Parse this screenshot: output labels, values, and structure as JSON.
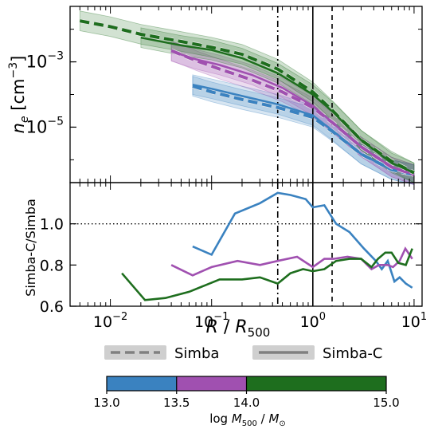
{
  "chart_data": [
    {
      "panel": "top",
      "type": "line",
      "ylabel_base": "n",
      "ylabel_sub": "e",
      "ylabel_unit_open": " [cm",
      "ylabel_unit_sup": "−3",
      "ylabel_unit_close": "]",
      "xscale": "log",
      "yscale": "log",
      "xlim": [
        0.004,
        12
      ],
      "ylim": [
        2e-07,
        0.05
      ],
      "y_ticks": [
        {
          "value": 0.001,
          "base": "10",
          "exp": "−3"
        },
        {
          "value": 1e-05,
          "base": "10",
          "exp": "−5"
        }
      ],
      "vlines": [
        {
          "x": 0.45,
          "style": "dashdot"
        },
        {
          "x": 1.0,
          "style": "solid"
        },
        {
          "x": 1.55,
          "style": "dashed"
        }
      ],
      "series": [
        {
          "mass_bin": [
            13.0,
            13.5
          ],
          "color": "#3a82c0",
          "variant": "Simba",
          "style": "dashed",
          "x": [
            0.065,
            0.1,
            0.2,
            0.45,
            1.0,
            1.6,
            3,
            6,
            10
          ],
          "y": [
            0.00018,
            0.00012,
            7e-05,
            4e-05,
            2e-05,
            7e-06,
            1.5e-06,
            5e-07,
            3.5e-07
          ],
          "band": [
            0.0016,
            0.002
          ]
        },
        {
          "mass_bin": [
            13.0,
            13.5
          ],
          "color": "#3a82c0",
          "variant": "Simba-C",
          "style": "solid",
          "x": [
            0.065,
            0.1,
            0.2,
            0.45,
            1.0,
            1.6,
            3,
            6,
            10
          ],
          "y": [
            0.0002,
            0.00015,
            9e-05,
            5e-05,
            2.3e-05,
            7.5e-06,
            1.5e-06,
            5e-07,
            3.5e-07
          ],
          "band": [
            0.0016,
            0.002
          ]
        },
        {
          "mass_bin": [
            13.5,
            14.0
          ],
          "color": "#a050b0",
          "variant": "Simba",
          "style": "dashed",
          "x": [
            0.04,
            0.07,
            0.12,
            0.25,
            0.5,
            1.0,
            1.6,
            3,
            6,
            10
          ],
          "y": [
            0.0022,
            0.0011,
            0.0006,
            0.00028,
            0.00012,
            4e-05,
            1.3e-05,
            2.5e-06,
            6e-07,
            3.5e-07
          ],
          "band": [
            0.0016,
            0.002
          ]
        },
        {
          "mass_bin": [
            13.5,
            14.0
          ],
          "color": "#a050b0",
          "variant": "Simba-C",
          "style": "solid",
          "x": [
            0.04,
            0.07,
            0.12,
            0.25,
            0.5,
            1.0,
            1.6,
            3,
            6,
            10
          ],
          "y": [
            0.0021,
            0.0012,
            0.0008,
            0.0004,
            0.00016,
            4.5e-05,
            1.3e-05,
            2.5e-06,
            6e-07,
            3.5e-07
          ],
          "band": [
            0.0016,
            0.002
          ]
        },
        {
          "mass_bin": [
            14.0,
            15.0
          ],
          "color": "#1e6e1e",
          "variant": "Simba",
          "style": "dashed",
          "x": [
            0.005,
            0.01,
            0.02,
            0.05,
            0.1,
            0.2,
            0.45,
            1.0,
            1.6,
            3,
            6,
            10
          ],
          "y": [
            0.018,
            0.012,
            0.007,
            0.0042,
            0.0028,
            0.0017,
            0.0006,
            0.00012,
            3e-05,
            4e-06,
            9e-07,
            4e-07
          ],
          "band": [
            0.0016,
            0.002
          ]
        },
        {
          "mass_bin": [
            14.0,
            15.0
          ],
          "color": "#1e6e1e",
          "variant": "Simba-C",
          "style": "solid",
          "x": [
            0.02,
            0.05,
            0.1,
            0.2,
            0.45,
            1.0,
            1.6,
            3,
            6,
            10
          ],
          "y": [
            0.0055,
            0.0032,
            0.0023,
            0.0013,
            0.00045,
            0.0001,
            2.8e-05,
            4e-06,
            8e-07,
            4e-07
          ],
          "band": [
            0.0016,
            0.002
          ]
        }
      ]
    },
    {
      "panel": "bottom",
      "type": "line",
      "ylabel": "Simba-C/Simba",
      "xlabel_base": "R",
      "xlabel_sep": " / ",
      "xlabel_sub": "500",
      "xscale": "log",
      "xlim": [
        0.004,
        12
      ],
      "ylim": [
        0.6,
        1.2
      ],
      "y_ticks": [
        {
          "value": 0.6,
          "label": "0.6"
        },
        {
          "value": 0.8,
          "label": "0.8"
        },
        {
          "value": 1.0,
          "label": "1.0"
        }
      ],
      "x_ticks": [
        {
          "value": 0.01,
          "base": "10",
          "exp": "−2"
        },
        {
          "value": 0.1,
          "base": "10",
          "exp": "−1"
        },
        {
          "value": 1,
          "base": "10",
          "exp": "0"
        },
        {
          "value": 10,
          "base": "10",
          "exp": "1"
        }
      ],
      "hline": {
        "y": 1.0,
        "style": "dotted"
      },
      "vlines": [
        {
          "x": 0.45,
          "style": "dashdot"
        },
        {
          "x": 1.0,
          "style": "solid"
        },
        {
          "x": 1.55,
          "style": "dashed"
        }
      ],
      "series": [
        {
          "mass_bin": [
            13.0,
            13.5
          ],
          "color": "#3a82c0",
          "x": [
            0.065,
            0.1,
            0.17,
            0.3,
            0.45,
            0.6,
            0.85,
            1.0,
            1.3,
            1.7,
            2.3,
            3.2,
            4.2,
            4.8,
            5.5,
            6.4,
            7.2,
            8.3,
            9.6
          ],
          "y": [
            0.89,
            0.85,
            1.05,
            1.1,
            1.15,
            1.14,
            1.12,
            1.08,
            1.09,
            1.0,
            0.96,
            0.88,
            0.82,
            0.78,
            0.82,
            0.72,
            0.74,
            0.71,
            0.69
          ]
        },
        {
          "mass_bin": [
            13.5,
            14.0
          ],
          "color": "#a050b0",
          "x": [
            0.04,
            0.065,
            0.1,
            0.18,
            0.3,
            0.45,
            0.7,
            1.0,
            1.3,
            1.6,
            2.2,
            3.0,
            3.8,
            4.5,
            5.5,
            6.2,
            7.2,
            8.2,
            9.6
          ],
          "y": [
            0.8,
            0.75,
            0.79,
            0.82,
            0.8,
            0.82,
            0.84,
            0.79,
            0.83,
            0.83,
            0.84,
            0.83,
            0.78,
            0.8,
            0.8,
            0.79,
            0.82,
            0.88,
            0.83
          ]
        },
        {
          "mass_bin": [
            14.0,
            15.0
          ],
          "color": "#1e6e1e",
          "x": [
            0.013,
            0.022,
            0.035,
            0.06,
            0.12,
            0.2,
            0.3,
            0.45,
            0.6,
            0.8,
            1.0,
            1.3,
            1.7,
            2.3,
            3.0,
            3.8,
            4.4,
            5.2,
            6.0,
            7.0,
            8.3,
            9.6
          ],
          "y": [
            0.76,
            0.63,
            0.64,
            0.67,
            0.73,
            0.73,
            0.74,
            0.71,
            0.76,
            0.78,
            0.77,
            0.78,
            0.82,
            0.83,
            0.83,
            0.79,
            0.83,
            0.86,
            0.86,
            0.81,
            0.8,
            0.88
          ]
        }
      ]
    }
  ],
  "legend": {
    "entries": [
      {
        "label": "Simba",
        "style": "dashed"
      },
      {
        "label": "Simba-C",
        "style": "solid"
      }
    ]
  },
  "colorbar": {
    "segments": [
      {
        "from": 13.0,
        "to": 13.5,
        "color": "#3a82c0"
      },
      {
        "from": 13.5,
        "to": 14.0,
        "color": "#a050b0"
      },
      {
        "from": 14.0,
        "to": 15.0,
        "color": "#1e6e1e"
      }
    ],
    "tick_labels": [
      "13.0",
      "13.5",
      "14.0",
      "15.0"
    ],
    "label_text": "log ",
    "label_var": "M",
    "label_sub1": "500",
    "label_sep": " / ",
    "label_sub2": "⊙"
  }
}
